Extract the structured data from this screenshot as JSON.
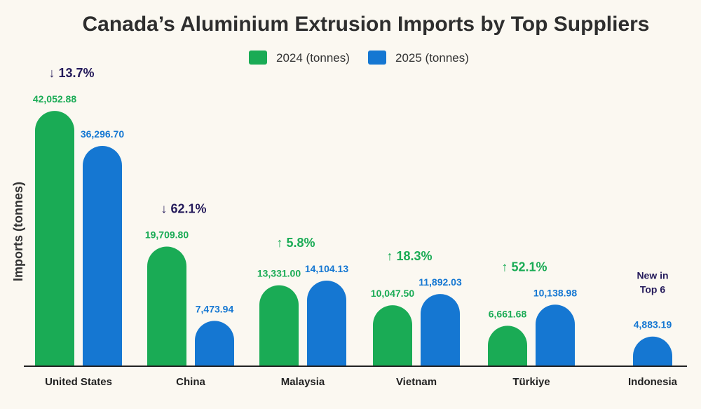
{
  "chart_data": {
    "type": "bar",
    "title": "Canada’s Aluminium Extrusion Imports by Top Suppliers",
    "ylabel": "Imports (tonnes)",
    "xlabel": "",
    "ylim": [
      0,
      46000
    ],
    "grid": false,
    "legend_position": "top-center",
    "categories": [
      "United States",
      "China",
      "Malaysia",
      "Vietnam",
      "Türkiye",
      "Indonesia"
    ],
    "series": [
      {
        "name": "2024 (tonnes)",
        "color": "#1aab55",
        "values": [
          42052.88,
          19709.8,
          13331.0,
          10047.5,
          6661.68,
          null
        ],
        "labels": [
          "42,052.88",
          "19,709.80",
          "13,331.00",
          "10,047.50",
          "6,661.68",
          ""
        ]
      },
      {
        "name": "2025 (tonnes)",
        "color": "#1577d2",
        "values": [
          36296.7,
          7473.94,
          14104.13,
          11892.03,
          10138.98,
          4883.19
        ],
        "labels": [
          "36,296.70",
          "7,473.94",
          "14,104.13",
          "11,892.03",
          "10,138.98",
          "4,883.19"
        ]
      }
    ],
    "annotations": [
      {
        "category": "United States",
        "arrow": "↓",
        "text": "13.7%",
        "direction": "down",
        "color": "#241a5a"
      },
      {
        "category": "China",
        "arrow": "↓",
        "text": "62.1%",
        "direction": "down",
        "color": "#241a5a"
      },
      {
        "category": "Malaysia",
        "arrow": "↑",
        "text": "5.8%",
        "direction": "up",
        "color": "#1aab55"
      },
      {
        "category": "Vietnam",
        "arrow": "↑",
        "text": "18.3%",
        "direction": "up",
        "color": "#1aab55"
      },
      {
        "category": "Türkiye",
        "arrow": "↑",
        "text": "52.1%",
        "direction": "up",
        "color": "#1aab55"
      }
    ],
    "notes": [
      {
        "category": "Indonesia",
        "lines": [
          "New in",
          "Top 6"
        ],
        "color": "#241a5a"
      }
    ]
  }
}
